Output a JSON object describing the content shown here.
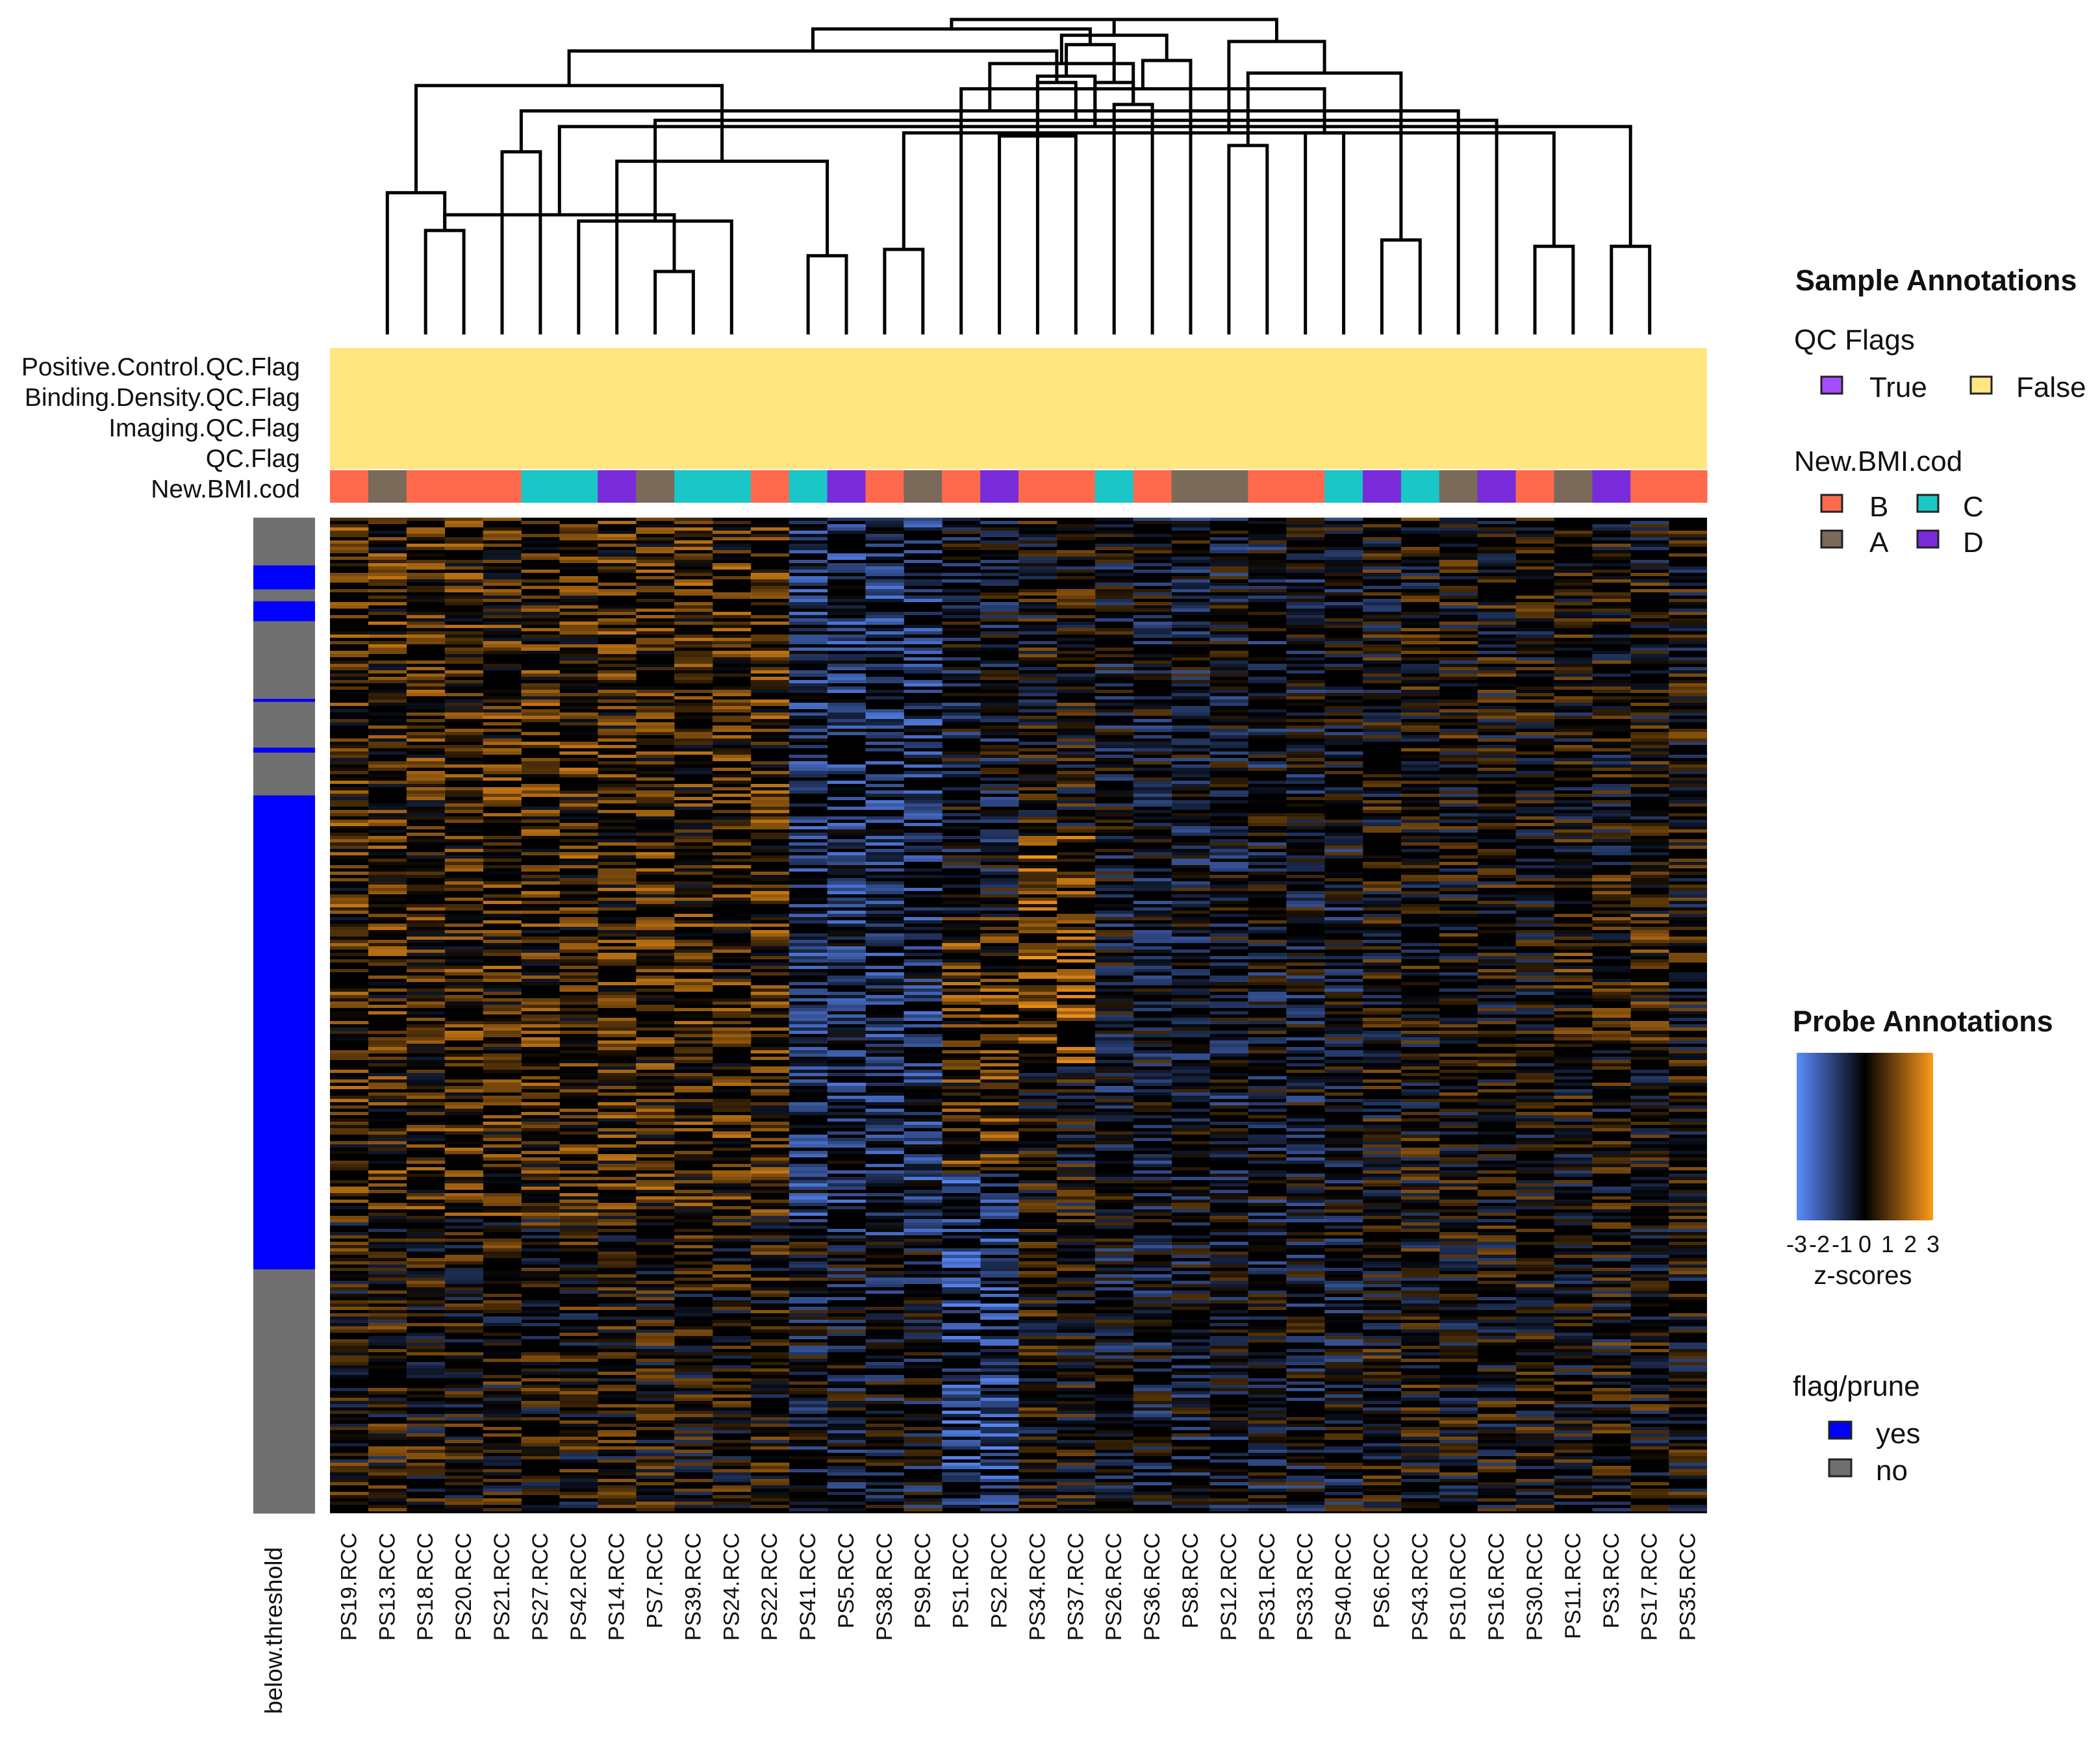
{
  "chart_data": {
    "type": "heatmap",
    "title": "",
    "samples": [
      "PS19.RCC",
      "PS13.RCC",
      "PS18.RCC",
      "PS20.RCC",
      "PS21.RCC",
      "PS27.RCC",
      "PS42.RCC",
      "PS14.RCC",
      "PS7.RCC",
      "PS39.RCC",
      "PS24.RCC",
      "PS22.RCC",
      "PS41.RCC",
      "PS5.RCC",
      "PS38.RCC",
      "PS9.RCC",
      "PS1.RCC",
      "PS2.RCC",
      "PS34.RCC",
      "PS37.RCC",
      "PS26.RCC",
      "PS36.RCC",
      "PS8.RCC",
      "PS12.RCC",
      "PS31.RCC",
      "PS33.RCC",
      "PS40.RCC",
      "PS6.RCC",
      "PS43.RCC",
      "PS10.RCC",
      "PS16.RCC",
      "PS30.RCC",
      "PS11.RCC",
      "PS3.RCC",
      "PS17.RCC",
      "PS35.RCC"
    ],
    "column_annotation_rows": [
      "Positive.Control.QC.Flag",
      "Binding.Density.QC.Flag",
      "Imaging.QC.Flag",
      "QC.Flag",
      "New.BMI.cod"
    ],
    "qc_flag_value_all_samples": "False",
    "new_bmi_cod": [
      "B",
      "A",
      "B",
      "B",
      "B",
      "C",
      "C",
      "D",
      "A",
      "C",
      "C",
      "B",
      "C",
      "D",
      "B",
      "A",
      "B",
      "D",
      "B",
      "B",
      "C",
      "B",
      "A",
      "A",
      "B",
      "B",
      "C",
      "D",
      "C",
      "A",
      "D",
      "B",
      "A",
      "D",
      "B",
      "B"
    ],
    "row_annotation_label": "below.threshold",
    "row_annotation_segments": [
      {
        "value": "no",
        "fraction": 0.048
      },
      {
        "value": "yes",
        "fraction": 0.024
      },
      {
        "value": "no",
        "fraction": 0.012
      },
      {
        "value": "yes",
        "fraction": 0.02
      },
      {
        "value": "no",
        "fraction": 0.078
      },
      {
        "value": "yes",
        "fraction": 0.003
      },
      {
        "value": "no",
        "fraction": 0.046
      },
      {
        "value": "yes",
        "fraction": 0.005
      },
      {
        "value": "no",
        "fraction": 0.043
      },
      {
        "value": "yes",
        "fraction": 0.476
      },
      {
        "value": "no",
        "fraction": 0.245
      }
    ],
    "dendrogram_merges": [
      [
        2,
        3,
        0.33
      ],
      [
        8,
        9,
        0.2
      ],
      [
        12,
        13,
        0.25
      ],
      [
        14,
        15,
        0.27
      ],
      [
        27,
        28,
        0.3
      ],
      [
        31,
        32,
        0.28
      ],
      [
        33,
        34,
        0.28
      ],
      [
        6,
        10,
        0.36
      ],
      [
        36,
        37,
        0.38
      ],
      [
        1,
        36,
        0.45
      ],
      [
        7,
        38,
        0.55
      ],
      [
        4,
        5,
        0.58
      ],
      [
        23,
        24,
        0.6
      ],
      [
        17,
        19,
        0.63
      ],
      [
        25,
        26,
        0.64
      ],
      [
        39,
        41,
        0.64
      ],
      [
        42,
        44,
        0.66
      ],
      [
        30,
        43,
        0.68
      ],
      [
        29,
        47,
        0.71
      ],
      [
        20,
        21,
        0.73
      ],
      [
        16,
        50,
        0.78
      ],
      [
        45,
        46,
        0.79
      ],
      [
        18,
        53,
        0.8
      ],
      [
        49,
        52,
        0.82
      ],
      [
        52,
        55,
        0.8
      ],
      [
        40,
        48,
        0.83
      ],
      [
        54,
        55,
        0.86
      ],
      [
        22,
        56,
        0.87
      ],
      [
        57,
        58,
        0.9
      ],
      [
        59,
        60,
        0.92
      ],
      [
        51,
        61,
        0.93
      ],
      [
        62,
        63,
        0.95
      ],
      [
        64,
        65,
        0.97
      ],
      [
        66,
        67,
        1.0
      ],
      [
        68,
        69,
        1.0
      ]
    ],
    "color_scale": {
      "label": "z-scores",
      "ticks": [
        "-3",
        "-2",
        "-1",
        "0",
        "1",
        "2",
        "3"
      ],
      "min": -3,
      "max": 3,
      "low_color": "#5b8cff",
      "mid_color": "#000000",
      "high_color": "#ff9a1a"
    },
    "legend_position": "right"
  },
  "legends": {
    "sample_title": "Sample Annotations",
    "qc_title": "QC Flags",
    "qc_items": [
      {
        "label": "True",
        "color": "#a64dff"
      },
      {
        "label": "False",
        "color": "#ffe680"
      }
    ],
    "bmi_title": "New.BMI.cod",
    "bmi_items": [
      {
        "label": "B",
        "color": "#ff6a4d"
      },
      {
        "label": "C",
        "color": "#1ac6c6"
      },
      {
        "label": "A",
        "color": "#7a6a5a"
      },
      {
        "label": "D",
        "color": "#7a2bd9"
      }
    ],
    "probe_title": "Probe Annotations",
    "scale_label": "z-scores",
    "prune_title": "flag/prune",
    "prune_items": [
      {
        "label": "yes",
        "color": "#0000ff"
      },
      {
        "label": "no",
        "color": "#707070"
      }
    ]
  }
}
